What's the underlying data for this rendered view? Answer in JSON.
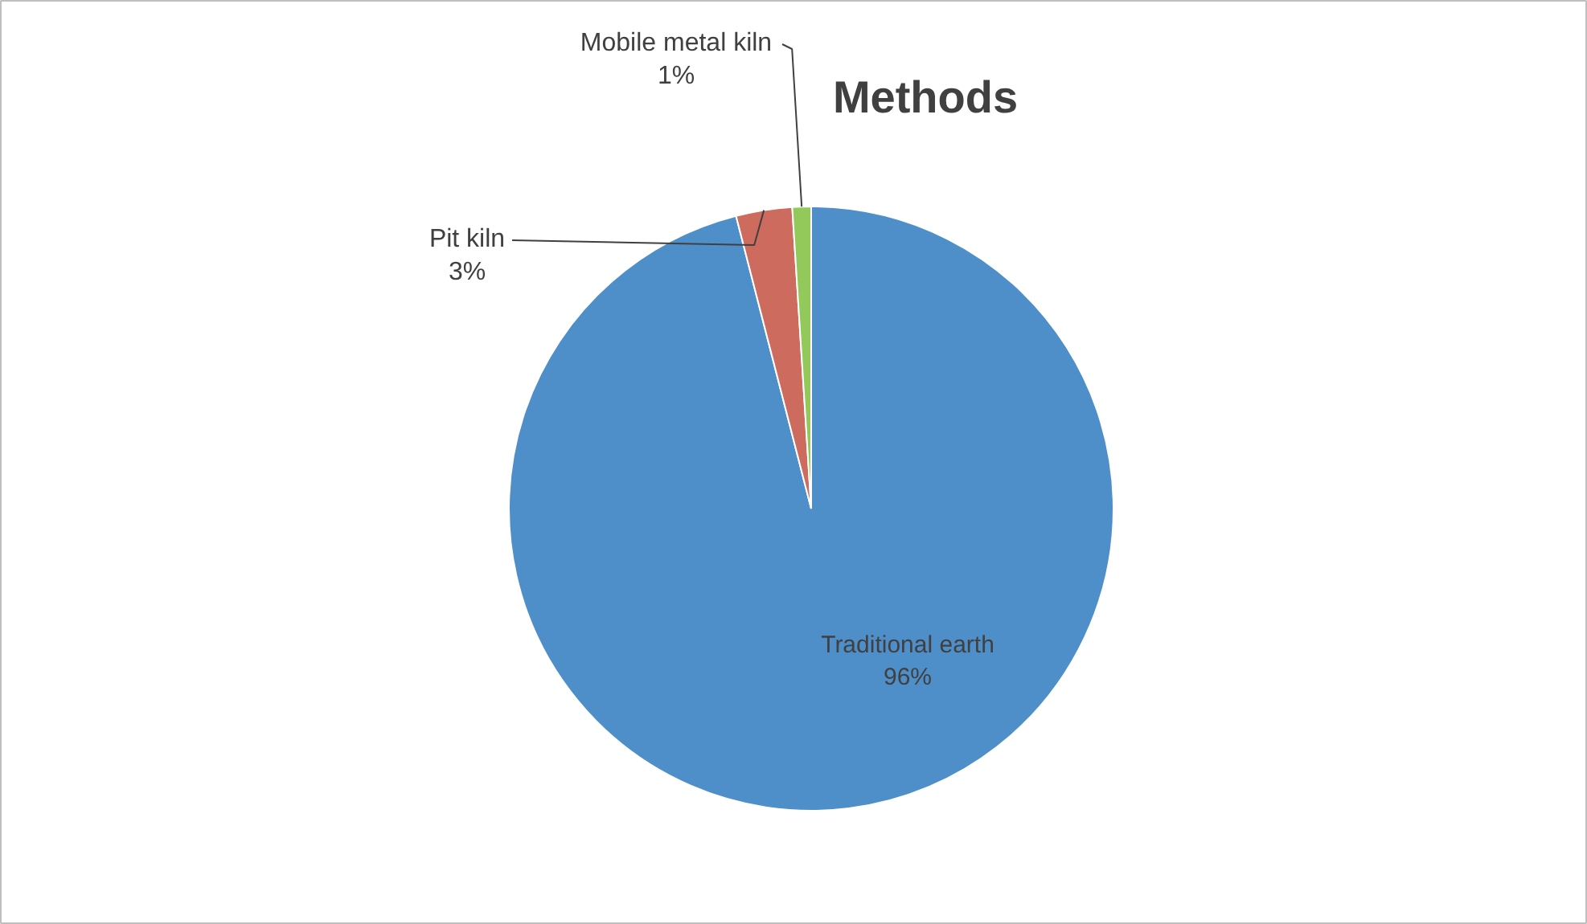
{
  "chart_data": {
    "type": "pie",
    "title": "Methods",
    "categories": [
      "Traditional earth",
      "Pit kiln",
      "Mobile metal kiln"
    ],
    "values": [
      96,
      3,
      1
    ],
    "colors": [
      "#4f8fc9",
      "#cd6b5f",
      "#93c85b"
    ],
    "value_labels": [
      "96%",
      "3%",
      "1%"
    ]
  }
}
